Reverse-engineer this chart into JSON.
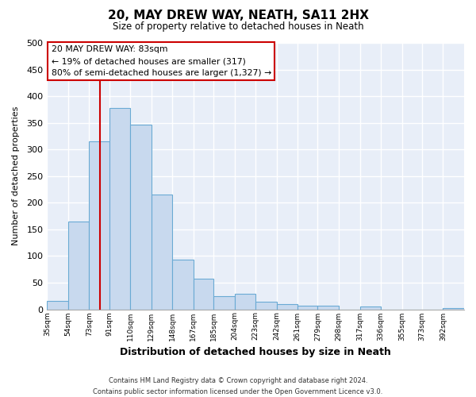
{
  "title": "20, MAY DREW WAY, NEATH, SA11 2HX",
  "subtitle": "Size of property relative to detached houses in Neath",
  "xlabel": "Distribution of detached houses by size in Neath",
  "ylabel": "Number of detached properties",
  "bar_color": "#c8d9ee",
  "bar_edge_color": "#6aaad4",
  "figure_bg": "#ffffff",
  "axes_bg": "#e8eef8",
  "grid_color": "#ffffff",
  "annotation_line_color": "#cc0000",
  "annotation_box_edgecolor": "#cc0000",
  "annotation_text_line1": "20 MAY DREW WAY: 83sqm",
  "annotation_text_line2": "← 19% of detached houses are smaller (317)",
  "annotation_text_line3": "80% of semi-detached houses are larger (1,327) →",
  "property_line_x": 83,
  "bins": [
    35,
    54,
    73,
    91,
    110,
    129,
    148,
    167,
    185,
    204,
    223,
    242,
    261,
    279,
    298,
    317,
    336,
    355,
    373,
    392,
    411
  ],
  "bar_heights": [
    15,
    165,
    315,
    378,
    346,
    215,
    93,
    57,
    25,
    29,
    14,
    10,
    7,
    6,
    0,
    5,
    0,
    0,
    0,
    3
  ],
  "ylim": [
    0,
    500
  ],
  "yticks": [
    0,
    50,
    100,
    150,
    200,
    250,
    300,
    350,
    400,
    450,
    500
  ],
  "footer_line1": "Contains HM Land Registry data © Crown copyright and database right 2024.",
  "footer_line2": "Contains public sector information licensed under the Open Government Licence v3.0.",
  "figsize": [
    6.0,
    5.0
  ],
  "dpi": 100
}
